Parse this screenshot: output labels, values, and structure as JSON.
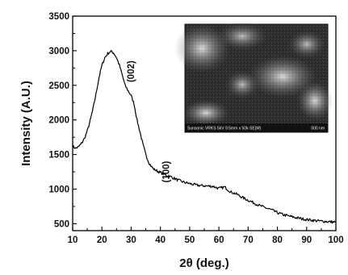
{
  "chart_data": {
    "type": "line",
    "title": "",
    "xlabel": "2θ (deg.)",
    "ylabel": "Intensity (A.U.)",
    "xlim": [
      10,
      100
    ],
    "ylim": [
      400,
      3500
    ],
    "xticks": [
      10,
      20,
      30,
      40,
      50,
      60,
      70,
      80,
      90,
      100
    ],
    "yticks": [
      500,
      1000,
      1500,
      2000,
      2500,
      3000,
      3500
    ],
    "grid": false,
    "legend": "none",
    "series": [
      {
        "color": "#000000",
        "x": [
          10,
          11,
          12,
          13,
          14,
          15,
          16,
          17,
          18,
          19,
          20,
          21,
          22,
          23,
          24,
          25,
          26,
          27,
          28,
          29,
          30,
          31,
          32,
          33,
          34,
          35,
          36,
          37,
          38,
          39,
          40,
          42,
          44,
          46,
          48,
          50,
          52,
          54,
          56,
          58,
          60,
          62,
          64,
          66,
          68,
          70,
          72,
          74,
          76,
          78,
          80,
          82,
          84,
          86,
          88,
          90,
          92,
          94,
          96,
          98,
          100
        ],
        "y": [
          1620,
          1590,
          1610,
          1660,
          1730,
          1840,
          1990,
          2170,
          2380,
          2610,
          2790,
          2900,
          2960,
          2990,
          2970,
          2900,
          2790,
          2640,
          2490,
          2420,
          2350,
          2230,
          2000,
          1830,
          1650,
          1500,
          1390,
          1320,
          1280,
          1260,
          1240,
          1200,
          1170,
          1130,
          1100,
          1080,
          1060,
          1050,
          1045,
          1040,
          1010,
          1030,
          960,
          930,
          880,
          840,
          800,
          760,
          730,
          700,
          660,
          630,
          610,
          590,
          575,
          560,
          550,
          540,
          535,
          528,
          520
        ]
      }
    ],
    "annotations": [
      {
        "text": "(002)",
        "x": 31,
        "y": 2700
      },
      {
        "text": "(100)",
        "x": 43,
        "y": 1250
      }
    ]
  },
  "inset": {
    "caption_left": "Sunsonic VRKS 5kV 9.5mm x 50k SE(M)",
    "caption_right": "500 nm"
  }
}
